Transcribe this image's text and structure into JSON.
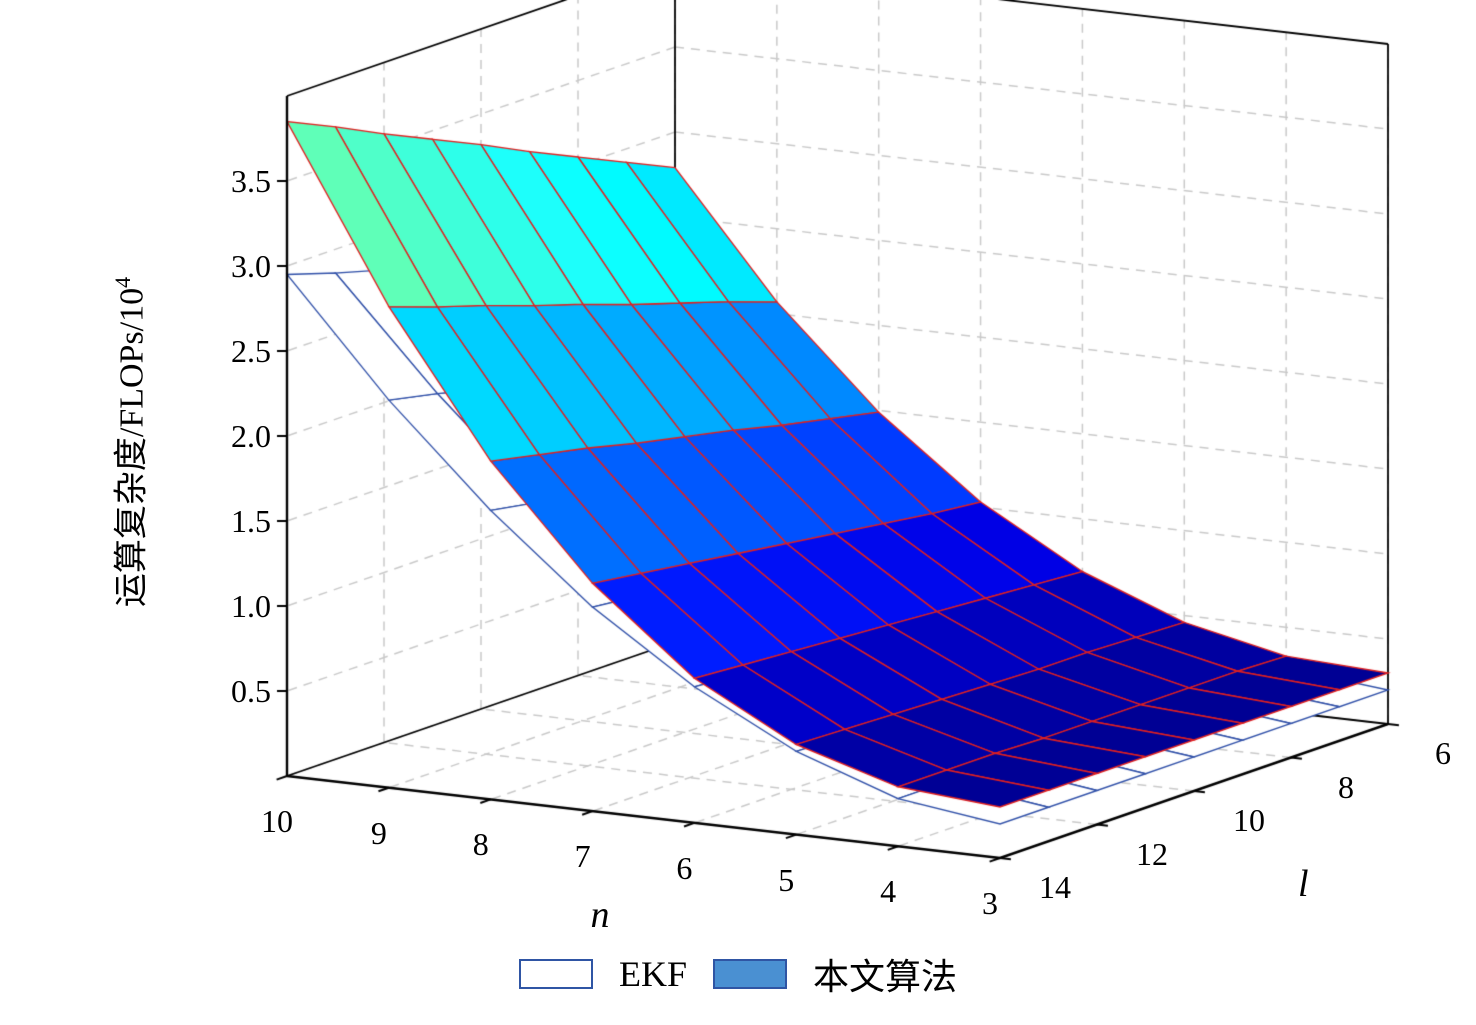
{
  "chart_data": {
    "type": "surface3d",
    "x": {
      "label": "n",
      "ticks": [
        10,
        9,
        8,
        7,
        6,
        5,
        4,
        3
      ],
      "range": [
        3,
        10
      ]
    },
    "y": {
      "label": "l",
      "ticks": [
        14,
        12,
        10,
        8,
        6
      ],
      "range": [
        6,
        14
      ]
    },
    "z": {
      "label_main": "运算复杂度/FLOPs/10",
      "label_sup": "4",
      "ticks": [
        0.5,
        1.0,
        1.5,
        2.0,
        2.5,
        3.0,
        3.5
      ],
      "tick_labels": [
        "0.5",
        "1.0",
        "1.5",
        "2.0",
        "2.5",
        "3.0",
        "3.5"
      ],
      "range": [
        0,
        4
      ]
    },
    "n_values": [
      3,
      4,
      5,
      6,
      7,
      8,
      9,
      10
    ],
    "l_values": [
      6,
      7,
      8,
      9,
      10,
      11,
      12,
      13,
      14
    ],
    "series": [
      {
        "name": "EKF",
        "style": "mesh",
        "edge_color": "#3050a8",
        "face_color": "#ffffff",
        "z_grid": [
          [
            0.2,
            0.2,
            0.2,
            0.2,
            0.2,
            0.2,
            0.2,
            0.2,
            0.2
          ],
          [
            0.26,
            0.26,
            0.27,
            0.27,
            0.27,
            0.28,
            0.28,
            0.28,
            0.28
          ],
          [
            0.42,
            0.43,
            0.43,
            0.44,
            0.45,
            0.46,
            0.47,
            0.48,
            0.49
          ],
          [
            0.65,
            0.67,
            0.69,
            0.71,
            0.72,
            0.74,
            0.76,
            0.78,
            0.8
          ],
          [
            0.95,
            0.98,
            1.02,
            1.05,
            1.08,
            1.11,
            1.14,
            1.17,
            1.2
          ],
          [
            1.33,
            1.37,
            1.42,
            1.47,
            1.51,
            1.56,
            1.61,
            1.65,
            1.7
          ],
          [
            1.76,
            1.83,
            1.89,
            1.96,
            2.02,
            2.09,
            2.15,
            2.22,
            2.28
          ],
          [
            2.26,
            2.35,
            2.43,
            2.52,
            2.61,
            2.69,
            2.78,
            2.86,
            2.95
          ]
        ]
      },
      {
        "name": "本文算法",
        "style": "surface-jet",
        "edge_color": "#e02020",
        "z_grid": [
          [
            0.3,
            0.3,
            0.3,
            0.3,
            0.3,
            0.3,
            0.3,
            0.3,
            0.3
          ],
          [
            0.33,
            0.34,
            0.34,
            0.34,
            0.34,
            0.34,
            0.35,
            0.35,
            0.35
          ],
          [
            0.46,
            0.47,
            0.48,
            0.48,
            0.49,
            0.5,
            0.51,
            0.52,
            0.53
          ],
          [
            0.69,
            0.71,
            0.73,
            0.75,
            0.77,
            0.79,
            0.81,
            0.83,
            0.85
          ],
          [
            1.03,
            1.06,
            1.1,
            1.14,
            1.18,
            1.22,
            1.26,
            1.3,
            1.34
          ],
          [
            1.49,
            1.55,
            1.61,
            1.68,
            1.74,
            1.8,
            1.87,
            1.93,
            1.99
          ],
          [
            2.07,
            2.17,
            2.26,
            2.35,
            2.45,
            2.54,
            2.64,
            2.73,
            2.83
          ],
          [
            2.79,
            2.92,
            3.05,
            3.18,
            3.32,
            3.45,
            3.58,
            3.72,
            3.85
          ]
        ]
      }
    ],
    "legend": [
      {
        "label": "EKF",
        "fill": "#ffffff",
        "border": "#2f55a4"
      },
      {
        "label": "本文算法",
        "fill": "#4a90d2",
        "border": "#2f55a4"
      }
    ],
    "grid_color": "#c9c9c9",
    "axis_color": "#000000"
  }
}
